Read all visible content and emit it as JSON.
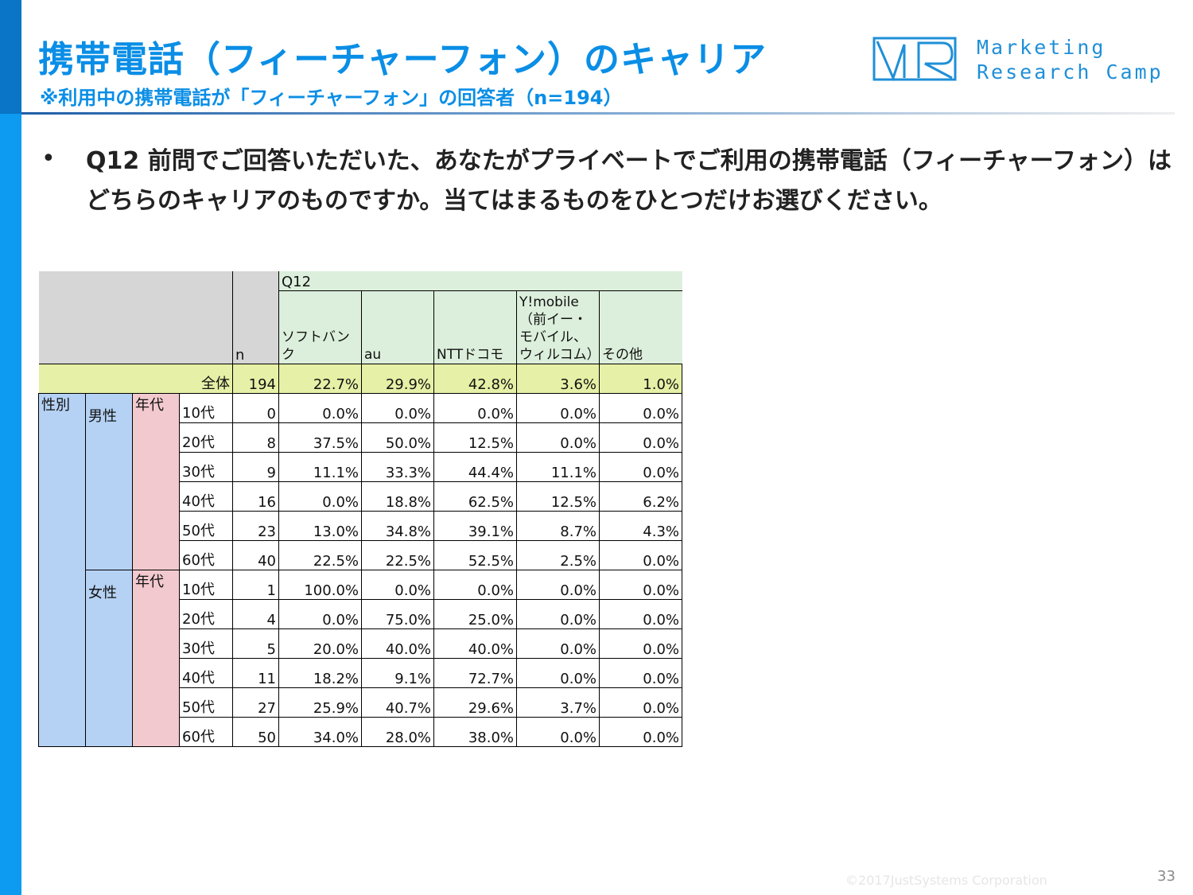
{
  "slide": {
    "title": "携帯電話（フィーチャーフォン）のキャリア",
    "subtitle": "※利用中の携帯電話が「フィーチャーフォン」の回答者（n=194）",
    "bullet": "•",
    "question": "Q12 前問でご回答いただいた、あなたがプライベートでご利用の携帯電話（フィーチャーフォン）はどちらのキャリアのものですか。当てはまるものをひとつだけお選びください。",
    "logo_line1": "Marketing",
    "logo_line2": "Research Camp",
    "copyright": "©2017JustSystems Corporation",
    "page_number": "33"
  },
  "colors": {
    "title_blue": "#0a8ee6",
    "sidebar_dark": "#0a74c6",
    "sidebar_light": "#0c9bf0",
    "header_green": "#dcefdc",
    "total_yellow": "#e6f0a6",
    "gender_blue": "#b5d2f4",
    "age_pink": "#f2c9ce"
  },
  "table": {
    "question_label": "Q12",
    "n_label": "n",
    "columns": [
      "ソフトバンク",
      "au",
      "NTTドコモ",
      "Y!mobile\n（前イー・モバイル、ウィルコム）",
      "その他"
    ],
    "total": {
      "label": "全体",
      "n": "194",
      "values": [
        "22.7%",
        "29.9%",
        "42.8%",
        "3.6%",
        "1.0%"
      ]
    },
    "gender_label": "性別",
    "age_label": "年代",
    "groups": [
      {
        "gender": "男性",
        "rows": [
          {
            "age": "10代",
            "n": "0",
            "values": [
              "0.0%",
              "0.0%",
              "0.0%",
              "0.0%",
              "0.0%"
            ]
          },
          {
            "age": "20代",
            "n": "8",
            "values": [
              "37.5%",
              "50.0%",
              "12.5%",
              "0.0%",
              "0.0%"
            ]
          },
          {
            "age": "30代",
            "n": "9",
            "values": [
              "11.1%",
              "33.3%",
              "44.4%",
              "11.1%",
              "0.0%"
            ]
          },
          {
            "age": "40代",
            "n": "16",
            "values": [
              "0.0%",
              "18.8%",
              "62.5%",
              "12.5%",
              "6.2%"
            ]
          },
          {
            "age": "50代",
            "n": "23",
            "values": [
              "13.0%",
              "34.8%",
              "39.1%",
              "8.7%",
              "4.3%"
            ]
          },
          {
            "age": "60代",
            "n": "40",
            "values": [
              "22.5%",
              "22.5%",
              "52.5%",
              "2.5%",
              "0.0%"
            ]
          }
        ]
      },
      {
        "gender": "女性",
        "rows": [
          {
            "age": "10代",
            "n": "1",
            "values": [
              "100.0%",
              "0.0%",
              "0.0%",
              "0.0%",
              "0.0%"
            ]
          },
          {
            "age": "20代",
            "n": "4",
            "values": [
              "0.0%",
              "75.0%",
              "25.0%",
              "0.0%",
              "0.0%"
            ]
          },
          {
            "age": "30代",
            "n": "5",
            "values": [
              "20.0%",
              "40.0%",
              "40.0%",
              "0.0%",
              "0.0%"
            ]
          },
          {
            "age": "40代",
            "n": "11",
            "values": [
              "18.2%",
              "9.1%",
              "72.7%",
              "0.0%",
              "0.0%"
            ]
          },
          {
            "age": "50代",
            "n": "27",
            "values": [
              "25.9%",
              "40.7%",
              "29.6%",
              "3.7%",
              "0.0%"
            ]
          },
          {
            "age": "60代",
            "n": "50",
            "values": [
              "34.0%",
              "28.0%",
              "38.0%",
              "0.0%",
              "0.0%"
            ]
          }
        ]
      }
    ]
  }
}
